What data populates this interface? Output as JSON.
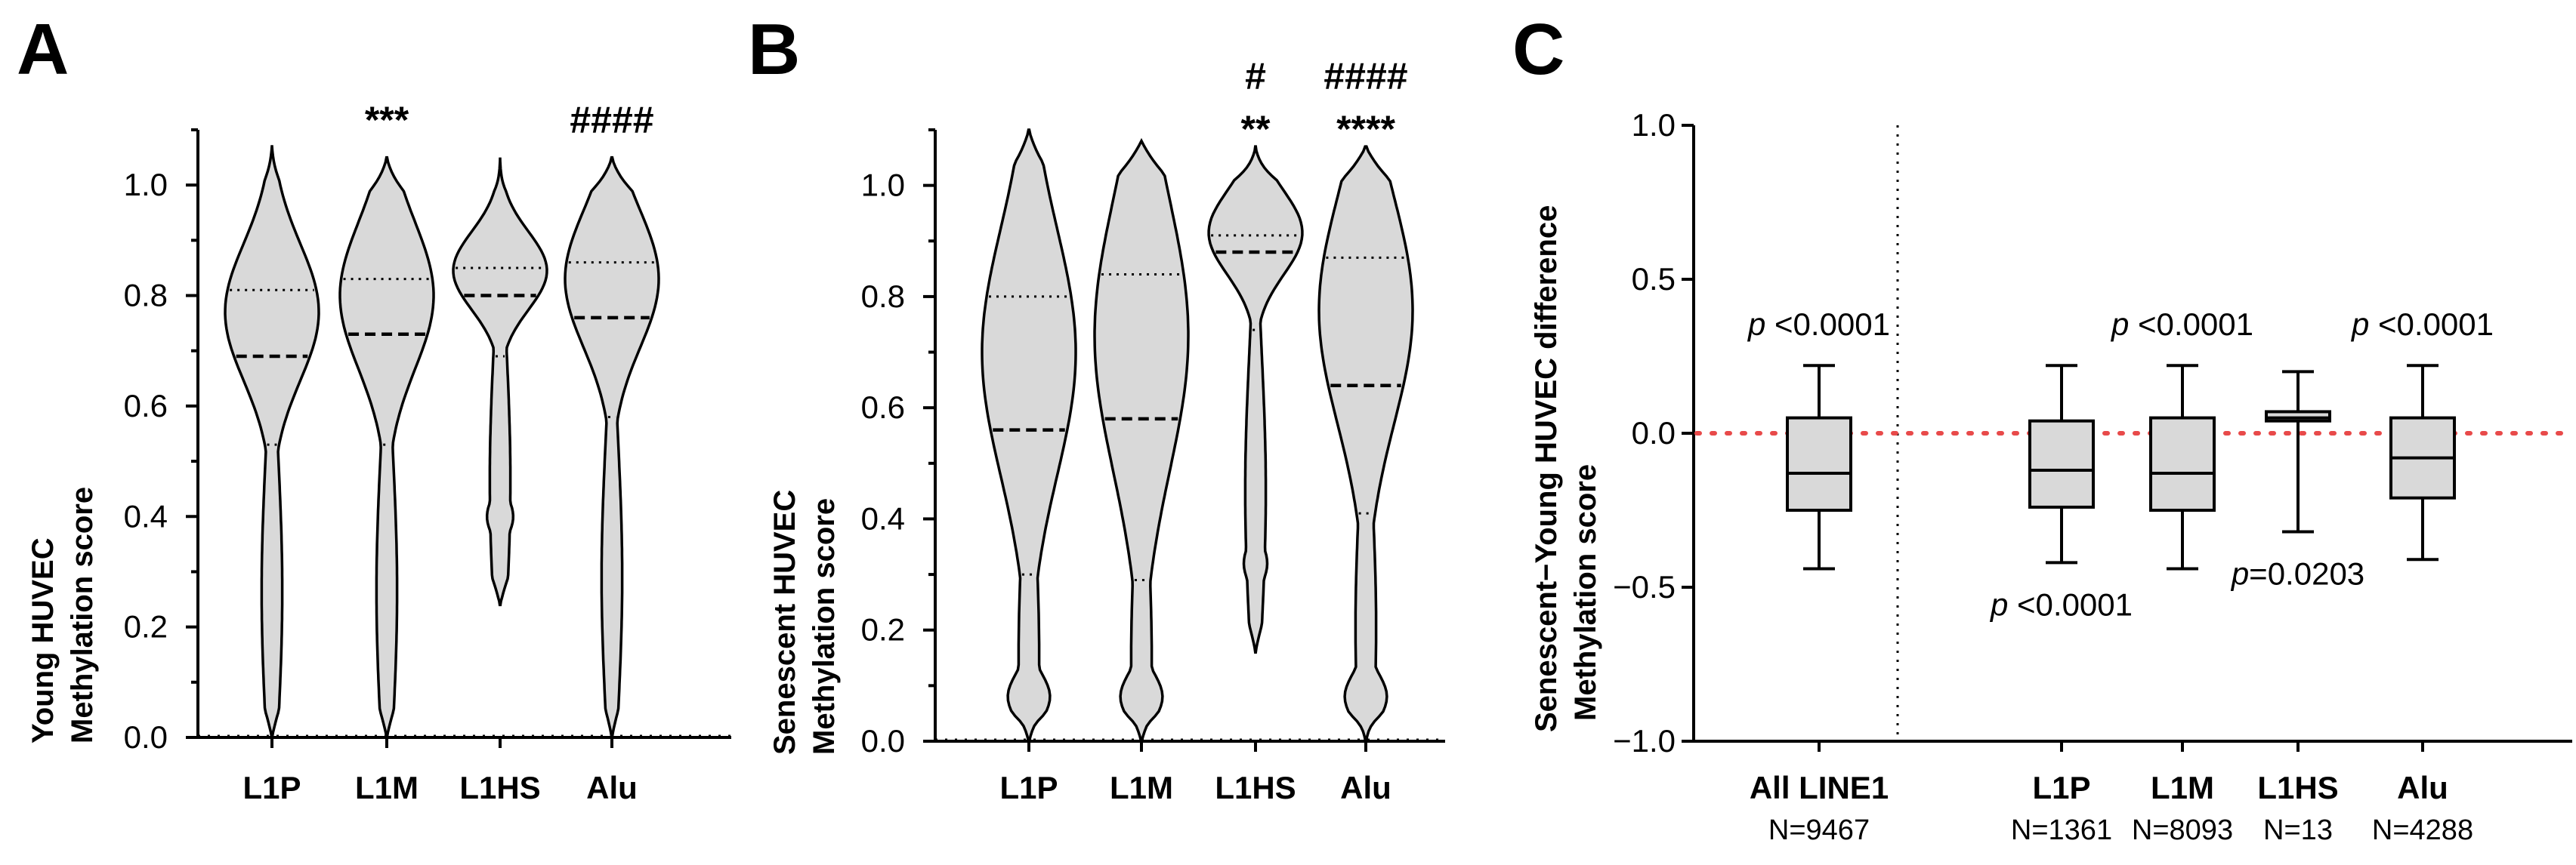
{
  "panels": {
    "A": {
      "letter": "A"
    },
    "B": {
      "letter": "B"
    },
    "C": {
      "letter": "C"
    }
  },
  "chart_data": [
    {
      "type": "violin",
      "panel": "A",
      "ylabel_line1": "Young HUVEC",
      "ylabel_line2": "Methylation score",
      "ylim": [
        0,
        1.1
      ],
      "yticks": [
        0.0,
        0.2,
        0.4,
        0.6,
        0.8,
        1.0
      ],
      "ytick_labels": [
        "0.0",
        "0.2",
        "0.4",
        "0.6",
        "0.8",
        "1.0"
      ],
      "categories": [
        "L1P",
        "L1M",
        "L1HS",
        "Alu"
      ],
      "medians": [
        0.69,
        0.73,
        0.8,
        0.76
      ],
      "q1": [
        0.53,
        0.53,
        0.69,
        0.58
      ],
      "q3": [
        0.81,
        0.83,
        0.85,
        0.86
      ],
      "max": [
        1.07,
        1.05,
        1.05,
        1.05
      ],
      "min": [
        0.0,
        0.0,
        0.24,
        0.0
      ],
      "annotations": [
        {
          "category": "L1M",
          "line1": "***",
          "line2": ""
        },
        {
          "category": "Alu",
          "line1": "####",
          "line2": ""
        }
      ]
    },
    {
      "type": "violin",
      "panel": "B",
      "ylabel_line1": "Senescent HUVEC",
      "ylabel_line2": "Methylation score",
      "ylim": [
        0,
        1.1
      ],
      "yticks": [
        0.0,
        0.2,
        0.4,
        0.6,
        0.8,
        1.0
      ],
      "ytick_labels": [
        "0.0",
        "0.2",
        "0.4",
        "0.6",
        "0.8",
        "1.0"
      ],
      "categories": [
        "L1P",
        "L1M",
        "L1HS",
        "Alu"
      ],
      "medians": [
        0.56,
        0.58,
        0.88,
        0.64
      ],
      "q1": [
        0.3,
        0.29,
        0.74,
        0.41
      ],
      "q3": [
        0.8,
        0.84,
        0.91,
        0.87
      ],
      "max": [
        1.1,
        1.08,
        1.07,
        1.07
      ],
      "min": [
        0.0,
        0.0,
        0.16,
        0.0
      ],
      "annotations": [
        {
          "category": "L1HS",
          "line1": "#",
          "line2": "**"
        },
        {
          "category": "Alu",
          "line1": "####",
          "line2": "****"
        }
      ]
    },
    {
      "type": "box",
      "panel": "C",
      "ylabel_line1": "Senescent−Young HUVEC difference",
      "ylabel_line2": "Methylation score",
      "ylim": [
        -1.0,
        1.0
      ],
      "yticks": [
        -1.0,
        -0.5,
        0.0,
        0.5,
        1.0
      ],
      "ytick_labels": [
        "−1.0",
        "−0.5",
        "0.0",
        "0.5",
        "1.0"
      ],
      "reference_line": 0.0,
      "categories": [
        "All LINE1",
        "L1P",
        "L1M",
        "L1HS",
        "Alu"
      ],
      "n_labels": [
        "N=9467",
        "N=1361",
        "N=8093",
        "N=13",
        "N=4288"
      ],
      "medians": [
        -0.13,
        -0.12,
        -0.13,
        0.05,
        -0.08
      ],
      "q1": [
        -0.25,
        -0.24,
        -0.25,
        0.04,
        -0.21
      ],
      "q3": [
        0.05,
        0.04,
        0.05,
        0.07,
        0.05
      ],
      "whisker_low": [
        -0.44,
        -0.42,
        -0.44,
        -0.32,
        -0.41
      ],
      "whisker_high": [
        0.22,
        0.22,
        0.22,
        0.2,
        0.22
      ],
      "pvalues": [
        {
          "category": "All LINE1",
          "p": "p",
          "text": " <0.0001",
          "position": "above"
        },
        {
          "category": "L1P",
          "p": "p",
          "text": " <0.0001",
          "position": "below"
        },
        {
          "category": "L1M",
          "p": "p",
          "text": " <0.0001",
          "position": "above"
        },
        {
          "category": "L1HS",
          "p": "p",
          "text": "=0.0203",
          "position": "below"
        },
        {
          "category": "Alu",
          "p": "p",
          "text": " <0.0001",
          "position": "above"
        }
      ]
    }
  ]
}
